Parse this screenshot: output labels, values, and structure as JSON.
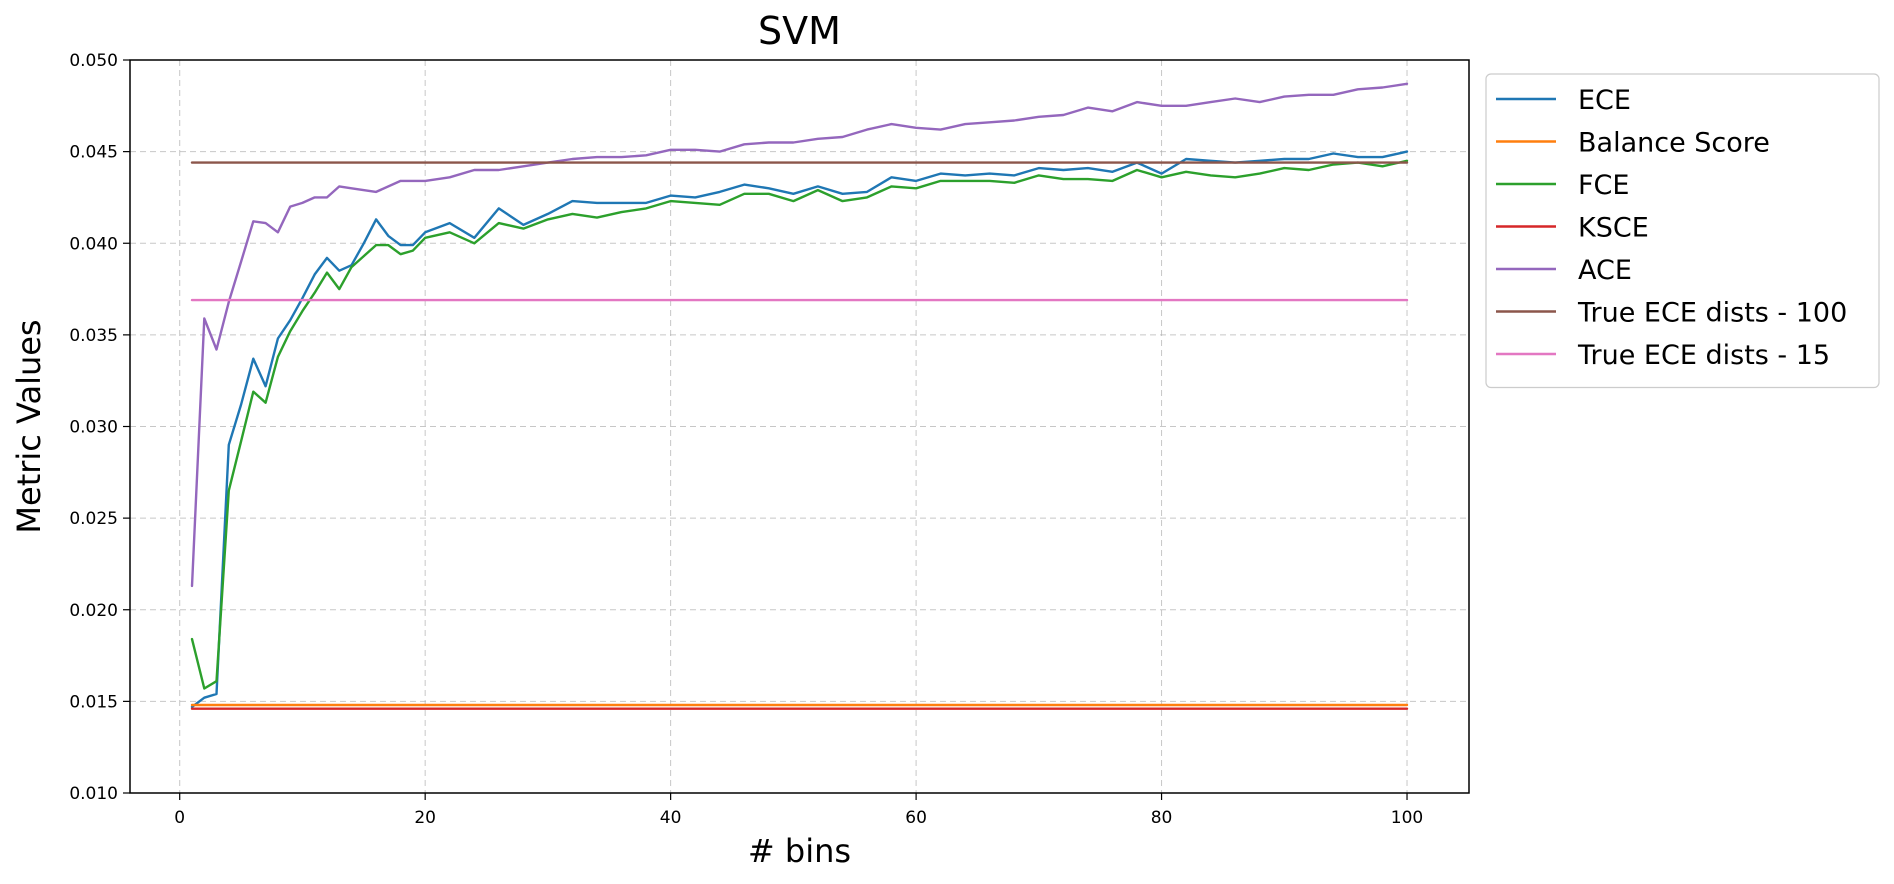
{
  "chart_data": {
    "type": "line",
    "title": "SVM",
    "xlabel": "# bins",
    "ylabel": "Metric Values",
    "xlim": [
      -4.05,
      105.05
    ],
    "ylim": [
      0.01,
      0.05
    ],
    "xticks": [
      0,
      20,
      40,
      60,
      80,
      100
    ],
    "yticks": [
      0.01,
      0.015,
      0.02,
      0.025,
      0.03,
      0.035,
      0.04,
      0.045,
      0.05
    ],
    "xtick_labels": [
      "0",
      "20",
      "40",
      "60",
      "80",
      "100"
    ],
    "ytick_labels": [
      "0.010",
      "0.015",
      "0.020",
      "0.025",
      "0.030",
      "0.035",
      "0.040",
      "0.045",
      "0.050"
    ],
    "grid": true,
    "legend_position": "outside-top-right",
    "x_range": [
      1,
      100
    ],
    "series": [
      {
        "name": "ECE",
        "color": "#1f77b4",
        "points": [
          [
            1,
            0.0147
          ],
          [
            2,
            0.0152
          ],
          [
            3,
            0.0154
          ],
          [
            4,
            0.029
          ],
          [
            5,
            0.0312
          ],
          [
            6,
            0.0337
          ],
          [
            7,
            0.0322
          ],
          [
            8,
            0.0348
          ],
          [
            9,
            0.0358
          ],
          [
            10,
            0.037
          ],
          [
            11,
            0.0383
          ],
          [
            12,
            0.0392
          ],
          [
            13,
            0.0385
          ],
          [
            14,
            0.0388
          ],
          [
            15,
            0.04
          ],
          [
            16,
            0.0413
          ],
          [
            17,
            0.0404
          ],
          [
            18,
            0.0399
          ],
          [
            19,
            0.0399
          ],
          [
            20,
            0.0406
          ],
          [
            22,
            0.0411
          ],
          [
            24,
            0.0403
          ],
          [
            26,
            0.0419
          ],
          [
            28,
            0.041
          ],
          [
            30,
            0.0416
          ],
          [
            32,
            0.0423
          ],
          [
            34,
            0.0422
          ],
          [
            38,
            0.0422
          ],
          [
            40,
            0.0426
          ],
          [
            42,
            0.0425
          ],
          [
            44,
            0.0428
          ],
          [
            46,
            0.0432
          ],
          [
            48,
            0.043
          ],
          [
            50,
            0.0427
          ],
          [
            52,
            0.0431
          ],
          [
            54,
            0.0427
          ],
          [
            56,
            0.0428
          ],
          [
            58,
            0.0436
          ],
          [
            60,
            0.0434
          ],
          [
            62,
            0.0438
          ],
          [
            64,
            0.0437
          ],
          [
            66,
            0.0438
          ],
          [
            68,
            0.0437
          ],
          [
            70,
            0.0441
          ],
          [
            72,
            0.044
          ],
          [
            74,
            0.0441
          ],
          [
            76,
            0.0439
          ],
          [
            78,
            0.0444
          ],
          [
            80,
            0.0438
          ],
          [
            82,
            0.0446
          ],
          [
            84,
            0.0445
          ],
          [
            86,
            0.0444
          ],
          [
            88,
            0.0445
          ],
          [
            90,
            0.0446
          ],
          [
            92,
            0.0446
          ],
          [
            94,
            0.0449
          ],
          [
            96,
            0.0447
          ],
          [
            98,
            0.0447
          ],
          [
            100,
            0.045
          ]
        ]
      },
      {
        "name": "Balance Score",
        "color": "#ff7f0e",
        "points": [
          [
            1,
            0.0148
          ],
          [
            100,
            0.0148
          ]
        ]
      },
      {
        "name": "FCE",
        "color": "#2ca02c",
        "points": [
          [
            1,
            0.0184
          ],
          [
            2,
            0.0157
          ],
          [
            3,
            0.0161
          ],
          [
            4,
            0.0265
          ],
          [
            5,
            0.0292
          ],
          [
            6,
            0.0319
          ],
          [
            7,
            0.0313
          ],
          [
            8,
            0.0338
          ],
          [
            9,
            0.0352
          ],
          [
            10,
            0.0363
          ],
          [
            11,
            0.0373
          ],
          [
            12,
            0.0384
          ],
          [
            13,
            0.0375
          ],
          [
            14,
            0.0387
          ],
          [
            15,
            0.0393
          ],
          [
            16,
            0.0399
          ],
          [
            17,
            0.0399
          ],
          [
            18,
            0.0394
          ],
          [
            19,
            0.0396
          ],
          [
            20,
            0.0403
          ],
          [
            22,
            0.0406
          ],
          [
            24,
            0.04
          ],
          [
            26,
            0.0411
          ],
          [
            28,
            0.0408
          ],
          [
            30,
            0.0413
          ],
          [
            32,
            0.0416
          ],
          [
            34,
            0.0414
          ],
          [
            36,
            0.0417
          ],
          [
            38,
            0.0419
          ],
          [
            40,
            0.0423
          ],
          [
            42,
            0.0422
          ],
          [
            44,
            0.0421
          ],
          [
            46,
            0.0427
          ],
          [
            48,
            0.0427
          ],
          [
            50,
            0.0423
          ],
          [
            52,
            0.0429
          ],
          [
            54,
            0.0423
          ],
          [
            56,
            0.0425
          ],
          [
            58,
            0.0431
          ],
          [
            60,
            0.043
          ],
          [
            62,
            0.0434
          ],
          [
            64,
            0.0434
          ],
          [
            66,
            0.0434
          ],
          [
            68,
            0.0433
          ],
          [
            70,
            0.0437
          ],
          [
            72,
            0.0435
          ],
          [
            74,
            0.0435
          ],
          [
            76,
            0.0434
          ],
          [
            78,
            0.044
          ],
          [
            80,
            0.0436
          ],
          [
            82,
            0.0439
          ],
          [
            84,
            0.0437
          ],
          [
            86,
            0.0436
          ],
          [
            88,
            0.0438
          ],
          [
            90,
            0.0441
          ],
          [
            92,
            0.044
          ],
          [
            94,
            0.0443
          ],
          [
            96,
            0.0444
          ],
          [
            98,
            0.0442
          ],
          [
            100,
            0.0445
          ]
        ]
      },
      {
        "name": "KSCE",
        "color": "#d62728",
        "points": [
          [
            1,
            0.0146
          ],
          [
            100,
            0.0146
          ]
        ]
      },
      {
        "name": "ACE",
        "color": "#9467bd",
        "points": [
          [
            1,
            0.0213
          ],
          [
            2,
            0.0359
          ],
          [
            3,
            0.0342
          ],
          [
            4,
            0.0368
          ],
          [
            5,
            0.039
          ],
          [
            6,
            0.0412
          ],
          [
            7,
            0.0411
          ],
          [
            8,
            0.0406
          ],
          [
            9,
            0.042
          ],
          [
            10,
            0.0422
          ],
          [
            11,
            0.0425
          ],
          [
            12,
            0.0425
          ],
          [
            13,
            0.0431
          ],
          [
            14,
            0.043
          ],
          [
            16,
            0.0428
          ],
          [
            18,
            0.0434
          ],
          [
            20,
            0.0434
          ],
          [
            22,
            0.0436
          ],
          [
            24,
            0.044
          ],
          [
            26,
            0.044
          ],
          [
            28,
            0.0442
          ],
          [
            30,
            0.0444
          ],
          [
            32,
            0.0446
          ],
          [
            34,
            0.0447
          ],
          [
            36,
            0.0447
          ],
          [
            38,
            0.0448
          ],
          [
            40,
            0.0451
          ],
          [
            42,
            0.0451
          ],
          [
            44,
            0.045
          ],
          [
            46,
            0.0454
          ],
          [
            48,
            0.0455
          ],
          [
            50,
            0.0455
          ],
          [
            52,
            0.0457
          ],
          [
            54,
            0.0458
          ],
          [
            56,
            0.0462
          ],
          [
            58,
            0.0465
          ],
          [
            60,
            0.0463
          ],
          [
            62,
            0.0462
          ],
          [
            64,
            0.0465
          ],
          [
            66,
            0.0466
          ],
          [
            68,
            0.0467
          ],
          [
            70,
            0.0469
          ],
          [
            72,
            0.047
          ],
          [
            74,
            0.0474
          ],
          [
            76,
            0.0472
          ],
          [
            78,
            0.0477
          ],
          [
            80,
            0.0475
          ],
          [
            82,
            0.0475
          ],
          [
            84,
            0.0477
          ],
          [
            86,
            0.0479
          ],
          [
            88,
            0.0477
          ],
          [
            90,
            0.048
          ],
          [
            92,
            0.0481
          ],
          [
            94,
            0.0481
          ],
          [
            96,
            0.0484
          ],
          [
            98,
            0.0485
          ],
          [
            100,
            0.0487
          ]
        ]
      },
      {
        "name": "True ECE dists - 100",
        "color": "#8c564b",
        "points": [
          [
            1,
            0.0444
          ],
          [
            100,
            0.0444
          ]
        ]
      },
      {
        "name": "True ECE dists - 15",
        "color": "#e377c2",
        "points": [
          [
            1,
            0.0369
          ],
          [
            100,
            0.0369
          ]
        ]
      }
    ]
  }
}
